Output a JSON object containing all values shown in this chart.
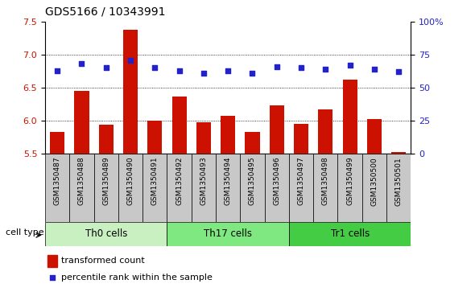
{
  "title": "GDS5166 / 10343991",
  "samples": [
    "GSM1350487",
    "GSM1350488",
    "GSM1350489",
    "GSM1350490",
    "GSM1350491",
    "GSM1350492",
    "GSM1350493",
    "GSM1350494",
    "GSM1350495",
    "GSM1350496",
    "GSM1350497",
    "GSM1350498",
    "GSM1350499",
    "GSM1350500",
    "GSM1350501"
  ],
  "transformed_count": [
    5.82,
    6.45,
    5.93,
    7.38,
    6.0,
    6.36,
    5.97,
    6.07,
    5.82,
    6.23,
    5.95,
    6.17,
    6.62,
    6.02,
    5.52
  ],
  "percentile_rank": [
    63,
    68,
    65,
    71,
    65,
    63,
    61,
    63,
    61,
    66,
    65,
    64,
    67,
    64,
    62
  ],
  "cell_types": [
    {
      "label": "Th0 cells",
      "start": 0,
      "end": 5,
      "color": "#c8f0c0"
    },
    {
      "label": "Th17 cells",
      "start": 5,
      "end": 10,
      "color": "#80e880"
    },
    {
      "label": "Tr1 cells",
      "start": 10,
      "end": 15,
      "color": "#44cc44"
    }
  ],
  "ylim_left": [
    5.5,
    7.5
  ],
  "ylim_right": [
    0,
    100
  ],
  "left_yticks": [
    5.5,
    6.0,
    6.5,
    7.0,
    7.5
  ],
  "right_yticks": [
    0,
    25,
    50,
    75,
    100
  ],
  "right_yticklabels": [
    "0",
    "25",
    "50",
    "75",
    "100%"
  ],
  "bar_color": "#cc1100",
  "dot_color": "#2222cc",
  "grid_color": "#000000",
  "plot_bg": "#ffffff",
  "xtick_bg": "#c8c8c8",
  "cell_type_label": "cell type",
  "legend_bar_label": "transformed count",
  "legend_dot_label": "percentile rank within the sample",
  "bar_bottom": 5.5,
  "bar_width": 0.6
}
